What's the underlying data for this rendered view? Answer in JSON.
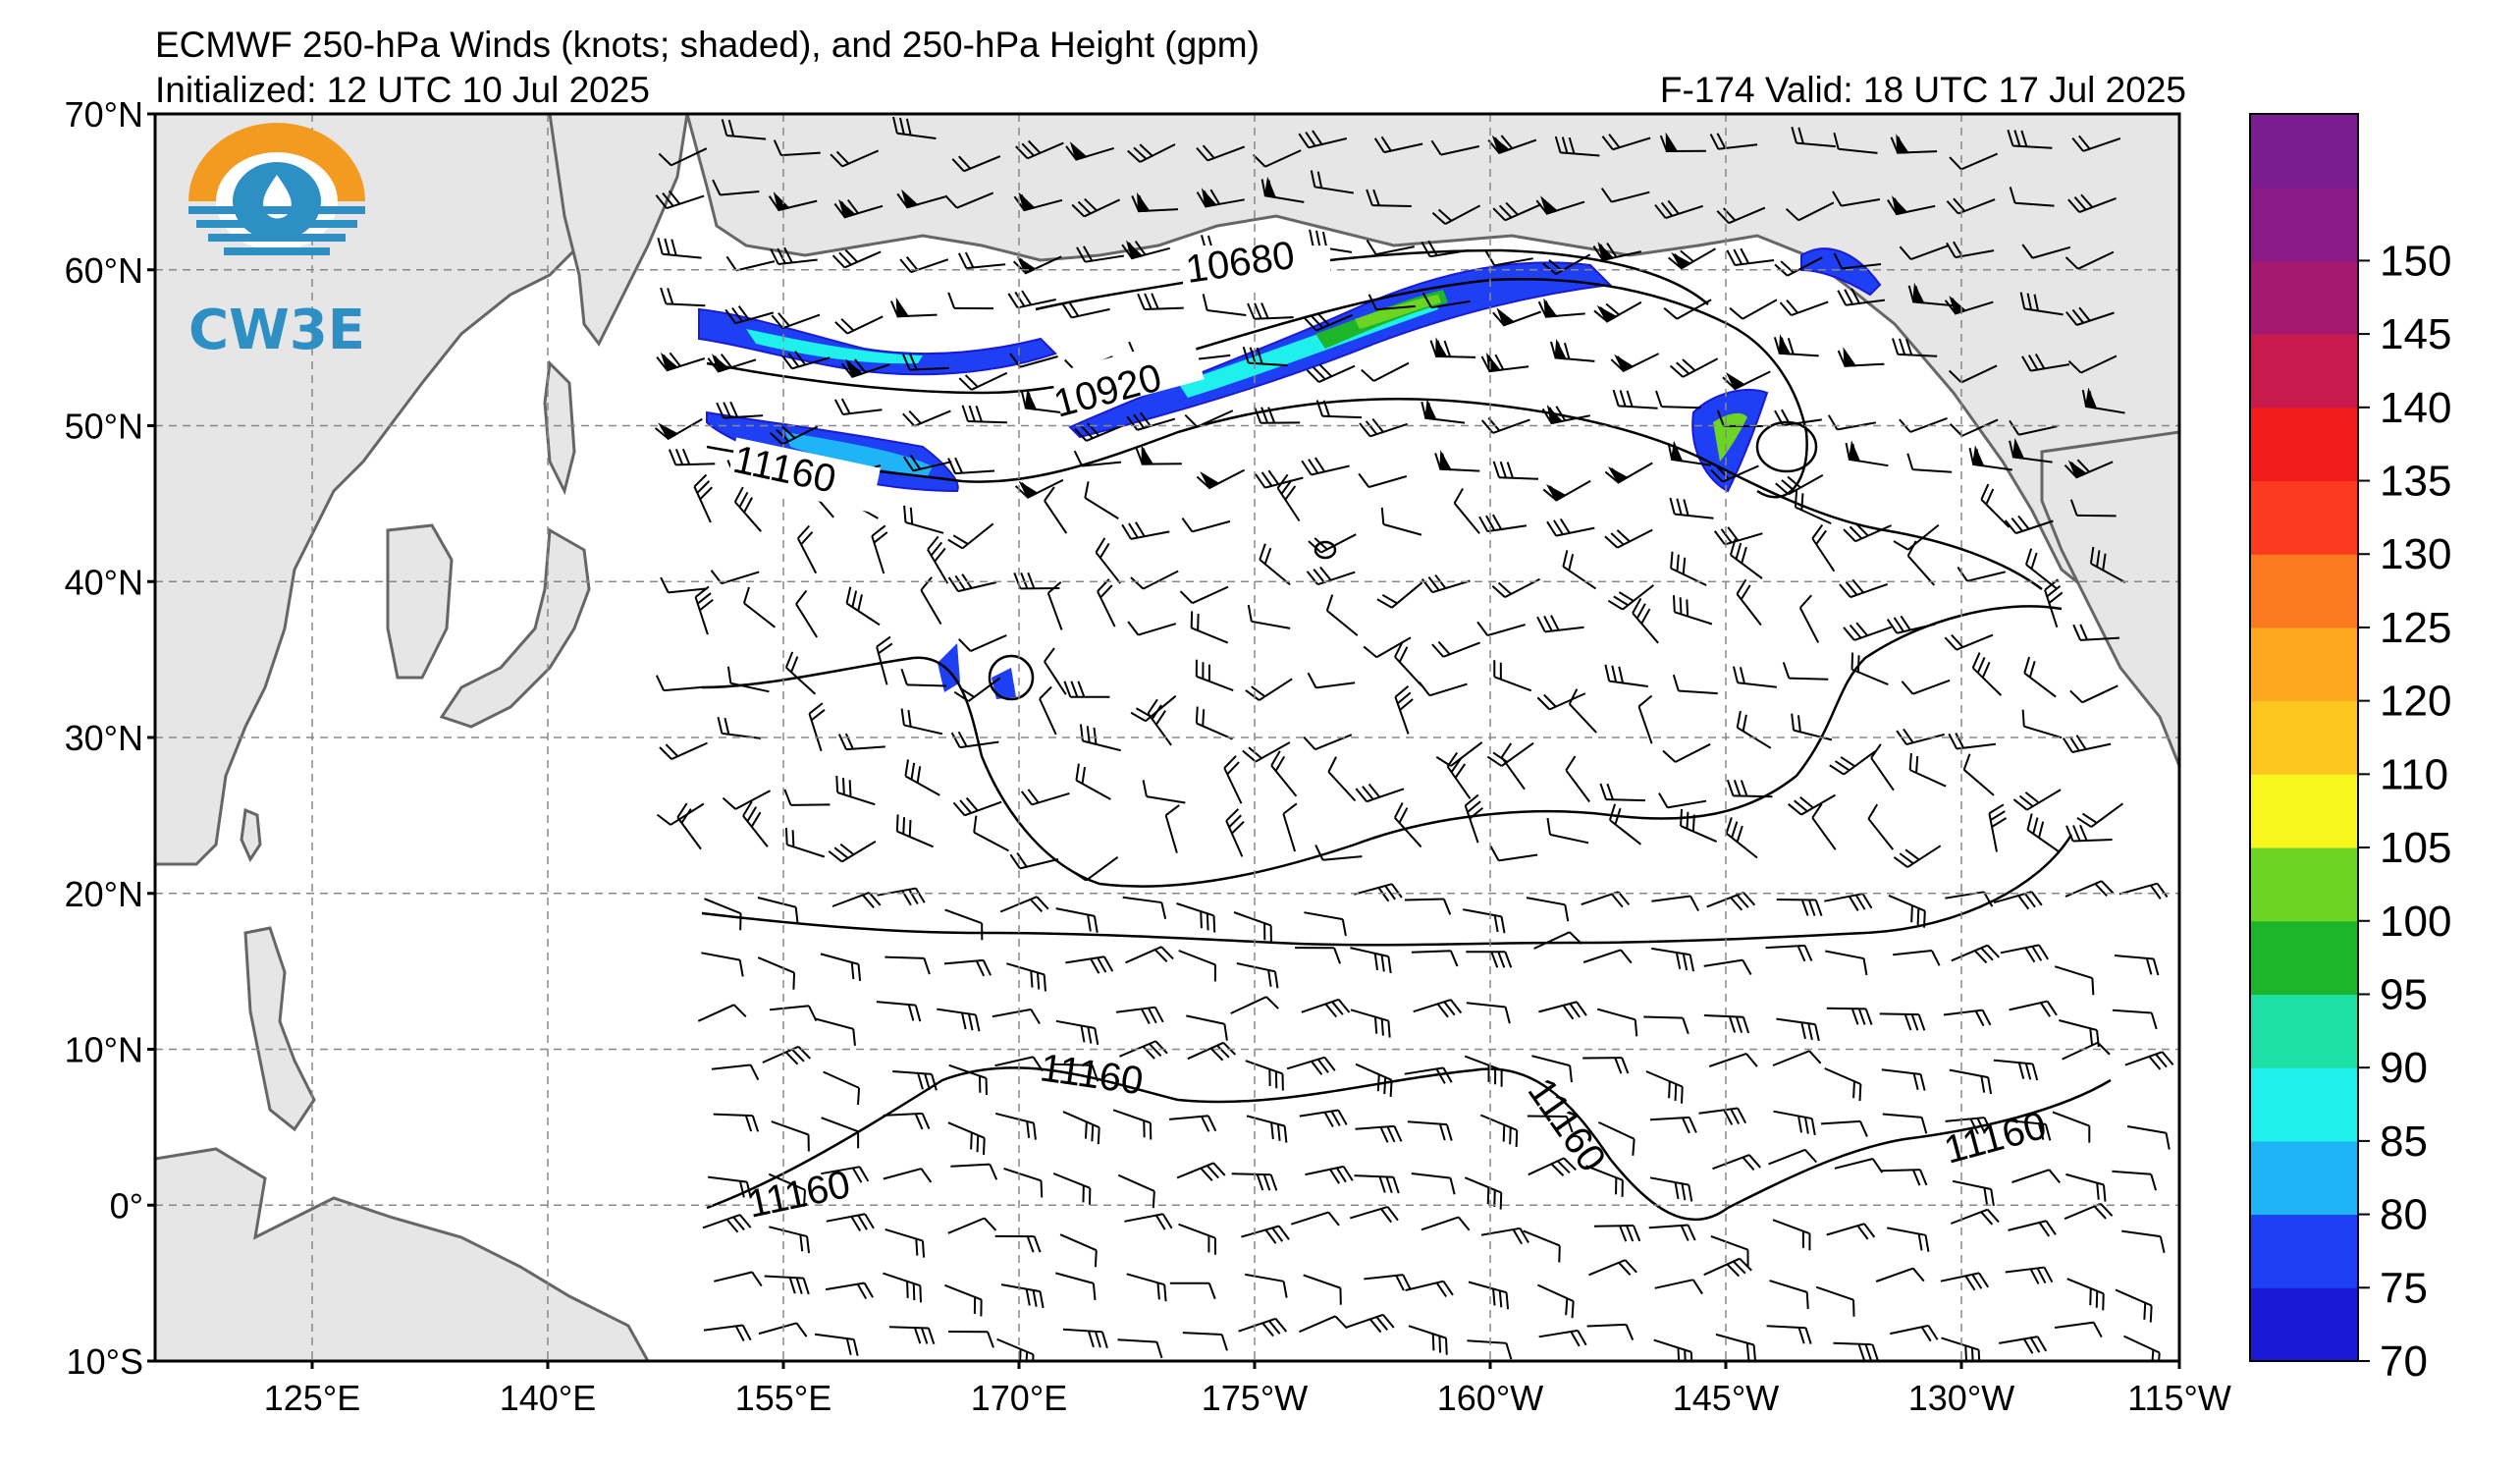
{
  "header": {
    "title": "ECMWF 250-hPa Winds (knots; shaded), and 250-hPa Height (gpm)",
    "initialized": "Initialized: 12 UTC 10 Jul 2025",
    "valid": "F-174  Valid: 18 UTC 17 Jul 2025"
  },
  "logo": {
    "text": "CW3E",
    "colors": {
      "orange": "#f39a21",
      "blue": "#2d8fc4"
    }
  },
  "map": {
    "lat_labels": [
      "70°N",
      "60°N",
      "50°N",
      "40°N",
      "30°N",
      "20°N",
      "10°N",
      "0°",
      "10°S"
    ],
    "lon_labels": [
      "125°E",
      "140°E",
      "155°E",
      "170°E",
      "175°W",
      "160°W",
      "145°W",
      "130°W",
      "115°W"
    ],
    "contour_labels": [
      "10680",
      "10920",
      "11160",
      "11160",
      "11160",
      "11160",
      "11160"
    ],
    "colors": {
      "land": "#e6e6e6",
      "coast": "#666666",
      "grid": "#888888",
      "contour": "#000000"
    }
  },
  "colorbar": {
    "tick_labels": [
      "70",
      "75",
      "80",
      "85",
      "90",
      "95",
      "100",
      "105",
      "110",
      "120",
      "125",
      "130",
      "135",
      "140",
      "145",
      "150"
    ],
    "colors": [
      "#1a1ad6",
      "#1f3ff5",
      "#1fb4f5",
      "#1ff0ec",
      "#1ee0a6",
      "#1db529",
      "#6cd422",
      "#f7f71e",
      "#fdc61e",
      "#fca91f",
      "#fb7a20",
      "#fb3a20",
      "#f21c1c",
      "#c91a4e",
      "#a51a70",
      "#8a1a88",
      "#7a1d90"
    ]
  }
}
